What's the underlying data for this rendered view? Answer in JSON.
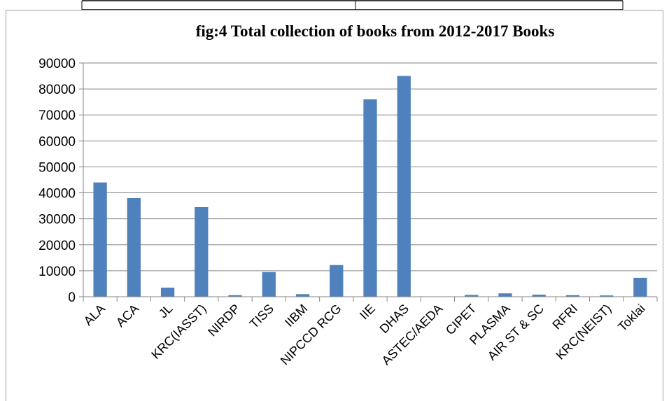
{
  "chart_data": {
    "type": "bar",
    "title": "fig:4 Total collection of books from 2012-2017 Books",
    "xlabel": "",
    "ylabel": "",
    "ylim": [
      0,
      90000
    ],
    "yticks": [
      0,
      10000,
      20000,
      30000,
      40000,
      50000,
      60000,
      70000,
      80000,
      90000
    ],
    "grid": true,
    "legend": "none",
    "bar_color": "#4f81bd",
    "categories": [
      "ALA",
      "ACA",
      "JL",
      "KRC(IASST)",
      "NIRDP",
      "TISS",
      "IIBM",
      "NIPCCD RCG",
      "IIE",
      "DHAS",
      "ASTEC/AEDA",
      "CIPET",
      "PLASMA",
      "AIR ST & SC",
      "RFRI",
      "KRC(NEIST)",
      "Toklai"
    ],
    "values": [
      44000,
      38000,
      3500,
      34500,
      600,
      9500,
      1000,
      12200,
      76000,
      85000,
      0,
      700,
      1300,
      800,
      600,
      500,
      7300
    ]
  }
}
